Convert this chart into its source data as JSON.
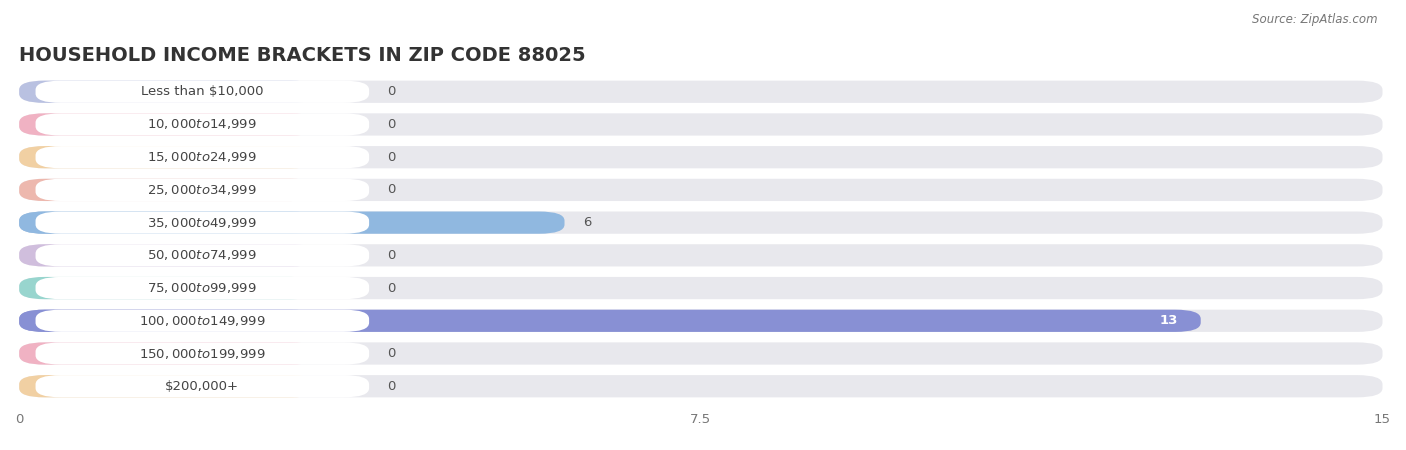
{
  "title": "HOUSEHOLD INCOME BRACKETS IN ZIP CODE 88025",
  "source": "Source: ZipAtlas.com",
  "categories": [
    "Less than $10,000",
    "$10,000 to $14,999",
    "$15,000 to $24,999",
    "$25,000 to $34,999",
    "$35,000 to $49,999",
    "$50,000 to $74,999",
    "$75,000 to $99,999",
    "$100,000 to $149,999",
    "$150,000 to $199,999",
    "$200,000+"
  ],
  "values": [
    0,
    0,
    0,
    0,
    6,
    0,
    0,
    13,
    0,
    0
  ],
  "bar_colors": [
    "#aab4de",
    "#f4a0b5",
    "#f5c98a",
    "#f0a899",
    "#90b8e0",
    "#c9b0d8",
    "#7ecfc4",
    "#8890d4",
    "#f4a0b5",
    "#f5c98a"
  ],
  "xlim": [
    0,
    15
  ],
  "xticks": [
    0,
    7.5,
    15
  ],
  "background_color": "#ffffff",
  "bar_bg_color": "#e8e8ed",
  "row_bg_color": "#f0f0f5",
  "title_fontsize": 14,
  "label_fontsize": 9.5,
  "value_fontsize": 9.5
}
